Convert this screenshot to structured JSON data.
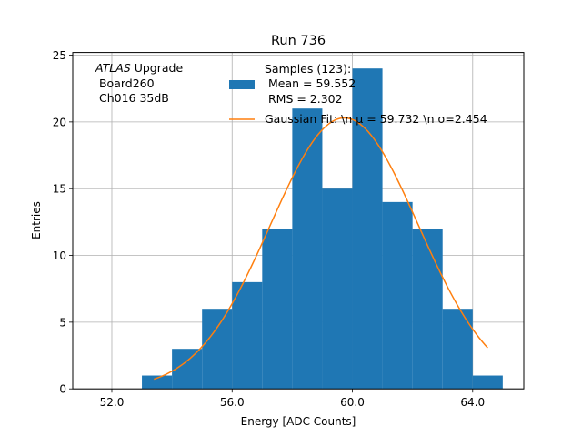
{
  "chart_data": {
    "type": "bar",
    "title": "Run 736",
    "xlabel": "Energy [ADC Counts]",
    "ylabel": "Entries",
    "xlim": [
      50.7,
      65.7
    ],
    "ylim": [
      0,
      25.2
    ],
    "xticks": [
      52.0,
      56.0,
      60.0,
      64.0
    ],
    "xtick_labels": [
      "52.0",
      "56.0",
      "60.0",
      "64.0"
    ],
    "yticks": [
      0,
      5,
      10,
      15,
      20,
      25
    ],
    "ytick_labels": [
      "0",
      "5",
      "10",
      "15",
      "20",
      "25"
    ],
    "grid": true,
    "legend_position": "top-center",
    "bin_edges": [
      53,
      54,
      55,
      56,
      57,
      58,
      59,
      60,
      61,
      62,
      63,
      64,
      65
    ],
    "values": [
      1,
      3,
      6,
      8,
      12,
      21,
      15,
      24,
      14,
      12,
      6,
      1
    ],
    "series": [
      {
        "name": "Samples (123):",
        "name_lines": [
          "Samples (123):",
          " Mean = 59.552",
          " RMS = 2.302"
        ],
        "kind": "histogram",
        "color": "#1f77b4"
      },
      {
        "name": "Gaussian Fit",
        "label_text": "Gaussian Fit: \\n μ = 59.732 \\n σ=2.454",
        "kind": "line",
        "color": "#ff7f0e",
        "mu": 59.732,
        "sigma": 2.454,
        "amplitude": 20.3,
        "x_range": [
          53.4,
          64.5
        ]
      }
    ],
    "annotation": {
      "line1_italic": "ATLAS",
      "line1_rest": " Upgrade",
      "line2": " Board260",
      "line3": " Ch016 35dB"
    }
  }
}
